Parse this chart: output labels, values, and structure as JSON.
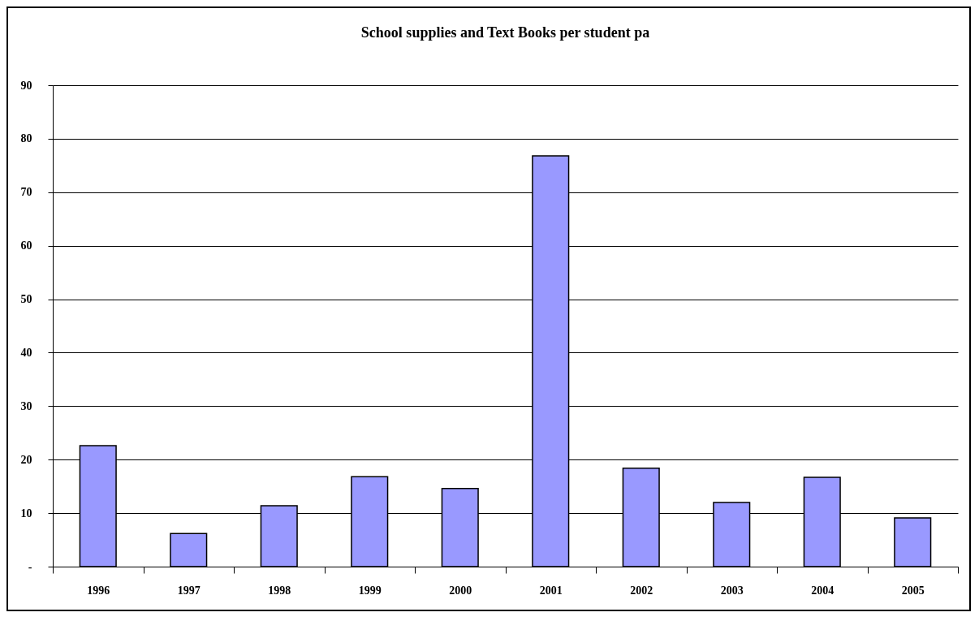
{
  "chart_data": {
    "type": "bar",
    "title": "School supplies and Text Books per student pa",
    "categories": [
      "1996",
      "1997",
      "1998",
      "1999",
      "2000",
      "2001",
      "2002",
      "2003",
      "2004",
      "2005"
    ],
    "values": [
      22.6,
      6.2,
      11.4,
      16.8,
      14.6,
      76.8,
      18.4,
      12.0,
      16.7,
      9.1
    ],
    "color": "#9999ff",
    "ylim": [
      0,
      90
    ],
    "yticks": [
      {
        "value": 0,
        "label": "-"
      },
      10,
      20,
      30,
      40,
      50,
      60,
      70,
      80,
      90
    ],
    "grid": "y"
  }
}
